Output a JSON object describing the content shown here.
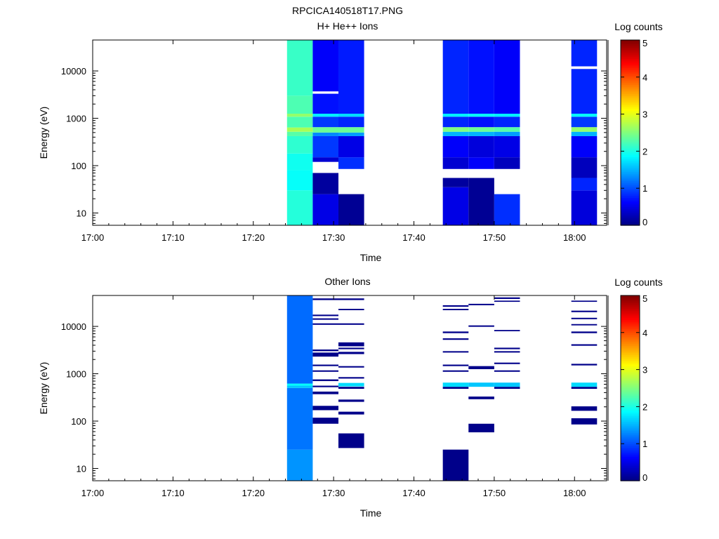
{
  "figure": {
    "title": "RPCICA140518T17.PNG"
  },
  "chart_data": [
    {
      "type": "heatmap",
      "title": "H+ He++ Ions",
      "xlabel": "Time",
      "ylabel": "Energy (eV)",
      "y_scale": "log",
      "ylim": [
        5.5,
        45000
      ],
      "x_tick_labels": [
        "17:00",
        "17:10",
        "17:20",
        "17:30",
        "17:40",
        "17:50",
        "18:00"
      ],
      "x_tick_minutes": [
        0,
        10,
        20,
        30,
        40,
        50,
        60
      ],
      "xlim_minutes": [
        0,
        64
      ],
      "y_tick_labels": [
        "10",
        "100",
        "1000",
        "10000"
      ],
      "y_tick_values": [
        10,
        100,
        1000,
        10000
      ],
      "colorbar": {
        "label": "Log counts",
        "ticks": [
          "0",
          "1",
          "2",
          "3",
          "4",
          "5"
        ],
        "range": [
          0,
          5
        ],
        "colormap": "jet"
      },
      "columns": [
        {
          "t0": 24.2,
          "t1": 27.4,
          "bins": [
            {
              "emin": 5.5,
              "emax": 30,
              "log_counts": 2.05
            },
            {
              "emin": 30,
              "emax": 80,
              "log_counts": 1.9
            },
            {
              "emin": 80,
              "emax": 180,
              "log_counts": 1.95
            },
            {
              "emin": 180,
              "emax": 420,
              "log_counts": 2.1
            },
            {
              "emin": 420,
              "emax": 520,
              "log_counts": 2.3
            },
            {
              "emin": 520,
              "emax": 640,
              "log_counts": 2.7
            },
            {
              "emin": 640,
              "emax": 1080,
              "log_counts": 2.25
            },
            {
              "emin": 1080,
              "emax": 1250,
              "log_counts": 2.6
            },
            {
              "emin": 1250,
              "emax": 3000,
              "log_counts": 2.25
            },
            {
              "emin": 3000,
              "emax": 45000,
              "log_counts": 2.15
            }
          ]
        },
        {
          "t0": 27.4,
          "t1": 30.6,
          "bins": [
            {
              "emin": 5.5,
              "emax": 25,
              "log_counts": 0.5
            },
            {
              "emin": 25,
              "emax": 70,
              "log_counts": 0.15
            },
            {
              "emin": 120,
              "emax": 150,
              "log_counts": 0.4
            },
            {
              "emin": 150,
              "emax": 420,
              "log_counts": 0.9
            },
            {
              "emin": 420,
              "emax": 500,
              "log_counts": 1.3
            },
            {
              "emin": 500,
              "emax": 650,
              "log_counts": 2.4
            },
            {
              "emin": 650,
              "emax": 1080,
              "log_counts": 0.9
            },
            {
              "emin": 1080,
              "emax": 1250,
              "log_counts": 1.8
            },
            {
              "emin": 1250,
              "emax": 3300,
              "log_counts": 0.7
            },
            {
              "emin": 3300,
              "emax": 3700,
              "log_counts": -1
            },
            {
              "emin": 3700,
              "emax": 45000,
              "log_counts": 0.6
            }
          ]
        },
        {
          "t0": 30.6,
          "t1": 33.8,
          "bins": [
            {
              "emin": 5.5,
              "emax": 25,
              "log_counts": 0.1
            },
            {
              "emin": 85,
              "emax": 150,
              "log_counts": 0.85
            },
            {
              "emin": 150,
              "emax": 420,
              "log_counts": 0.5
            },
            {
              "emin": 420,
              "emax": 500,
              "log_counts": 1.4
            },
            {
              "emin": 500,
              "emax": 650,
              "log_counts": 2.4
            },
            {
              "emin": 650,
              "emax": 1080,
              "log_counts": 0.8
            },
            {
              "emin": 1080,
              "emax": 1250,
              "log_counts": 1.7
            },
            {
              "emin": 1250,
              "emax": 45000,
              "log_counts": 0.75
            }
          ]
        },
        {
          "t0": 43.6,
          "t1": 46.8,
          "bins": [
            {
              "emin": 5.5,
              "emax": 35,
              "log_counts": 0.5
            },
            {
              "emin": 35,
              "emax": 55,
              "log_counts": 0.15
            },
            {
              "emin": 85,
              "emax": 150,
              "log_counts": 0.4
            },
            {
              "emin": 150,
              "emax": 420,
              "log_counts": 0.6
            },
            {
              "emin": 420,
              "emax": 520,
              "log_counts": 1.5
            },
            {
              "emin": 520,
              "emax": 650,
              "log_counts": 2.5
            },
            {
              "emin": 650,
              "emax": 1080,
              "log_counts": 0.8
            },
            {
              "emin": 1080,
              "emax": 1250,
              "log_counts": 1.8
            },
            {
              "emin": 1250,
              "emax": 45000,
              "log_counts": 0.8
            }
          ]
        },
        {
          "t0": 46.8,
          "t1": 50.0,
          "bins": [
            {
              "emin": 5.5,
              "emax": 55,
              "log_counts": 0.1
            },
            {
              "emin": 85,
              "emax": 150,
              "log_counts": 0.6
            },
            {
              "emin": 150,
              "emax": 420,
              "log_counts": 0.45
            },
            {
              "emin": 420,
              "emax": 520,
              "log_counts": 1.5
            },
            {
              "emin": 520,
              "emax": 650,
              "log_counts": 2.4
            },
            {
              "emin": 650,
              "emax": 1080,
              "log_counts": 0.7
            },
            {
              "emin": 1080,
              "emax": 1250,
              "log_counts": 1.9
            },
            {
              "emin": 1250,
              "emax": 45000,
              "log_counts": 0.7
            }
          ]
        },
        {
          "t0": 50.0,
          "t1": 53.2,
          "bins": [
            {
              "emin": 5.5,
              "emax": 25,
              "log_counts": 0.85
            },
            {
              "emin": 85,
              "emax": 150,
              "log_counts": 0.3
            },
            {
              "emin": 150,
              "emax": 420,
              "log_counts": 0.5
            },
            {
              "emin": 420,
              "emax": 520,
              "log_counts": 1.4
            },
            {
              "emin": 520,
              "emax": 650,
              "log_counts": 2.3
            },
            {
              "emin": 650,
              "emax": 1080,
              "log_counts": 0.8
            },
            {
              "emin": 1080,
              "emax": 1250,
              "log_counts": 1.8
            },
            {
              "emin": 1250,
              "emax": 45000,
              "log_counts": 0.6
            }
          ]
        },
        {
          "t0": 59.6,
          "t1": 62.8,
          "bins": [
            {
              "emin": 5.5,
              "emax": 30,
              "log_counts": 0.45
            },
            {
              "emin": 30,
              "emax": 55,
              "log_counts": 0.8
            },
            {
              "emin": 55,
              "emax": 150,
              "log_counts": 0.3
            },
            {
              "emin": 150,
              "emax": 420,
              "log_counts": 0.6
            },
            {
              "emin": 420,
              "emax": 520,
              "log_counts": 1.5
            },
            {
              "emin": 520,
              "emax": 650,
              "log_counts": 2.6
            },
            {
              "emin": 650,
              "emax": 1080,
              "log_counts": 0.9
            },
            {
              "emin": 1080,
              "emax": 1250,
              "log_counts": 1.9
            },
            {
              "emin": 1250,
              "emax": 11000,
              "log_counts": 0.8
            },
            {
              "emin": 11000,
              "emax": 12500,
              "log_counts": -1
            },
            {
              "emin": 12500,
              "emax": 45000,
              "log_counts": 0.8
            }
          ]
        }
      ]
    },
    {
      "type": "heatmap",
      "title": "Other Ions",
      "xlabel": "Time",
      "ylabel": "Energy (eV)",
      "y_scale": "log",
      "ylim": [
        5.5,
        45000
      ],
      "x_tick_labels": [
        "17:00",
        "17:10",
        "17:20",
        "17:30",
        "17:40",
        "17:50",
        "18:00"
      ],
      "x_tick_minutes": [
        0,
        10,
        20,
        30,
        40,
        50,
        60
      ],
      "xlim_minutes": [
        0,
        64
      ],
      "y_tick_labels": [
        "10",
        "100",
        "1000",
        "10000"
      ],
      "y_tick_values": [
        10,
        100,
        1000,
        10000
      ],
      "colorbar": {
        "label": "Log counts",
        "ticks": [
          "0",
          "1",
          "2",
          "3",
          "4",
          "5"
        ],
        "range": [
          0,
          5
        ],
        "colormap": "jet"
      },
      "columns": [
        {
          "t0": 24.2,
          "t1": 27.4,
          "bins": [
            {
              "emin": 5.5,
              "emax": 25,
              "log_counts": 1.35
            },
            {
              "emin": 25,
              "emax": 500,
              "log_counts": 1.2
            },
            {
              "emin": 500,
              "emax": 560,
              "log_counts": 1.6
            },
            {
              "emin": 560,
              "emax": 620,
              "log_counts": 1.9
            },
            {
              "emin": 620,
              "emax": 45000,
              "log_counts": 1.15
            }
          ]
        },
        {
          "t0": 27.4,
          "t1": 30.6,
          "bins": [
            {
              "emin": 88,
              "emax": 118,
              "log_counts": 0.05
            },
            {
              "emin": 170,
              "emax": 210,
              "log_counts": 0.05
            },
            {
              "emin": 370,
              "emax": 420,
              "log_counts": 0.05
            },
            {
              "emin": 520,
              "emax": 560,
              "log_counts": 0.05
            },
            {
              "emin": 700,
              "emax": 760,
              "log_counts": 0.05
            },
            {
              "emin": 1100,
              "emax": 1180,
              "log_counts": 0.05
            },
            {
              "emin": 1450,
              "emax": 1560,
              "log_counts": 0.05
            },
            {
              "emin": 2300,
              "emax": 2800,
              "log_counts": 0.05
            },
            {
              "emin": 3000,
              "emax": 3250,
              "log_counts": 0.05
            },
            {
              "emin": 10800,
              "emax": 11600,
              "log_counts": 0.05
            },
            {
              "emin": 13800,
              "emax": 14800,
              "log_counts": 0.05
            },
            {
              "emin": 16500,
              "emax": 17700,
              "log_counts": 0.05
            },
            {
              "emin": 36000,
              "emax": 39000,
              "log_counts": 0.05
            }
          ]
        },
        {
          "t0": 30.6,
          "t1": 33.8,
          "bins": [
            {
              "emin": 27,
              "emax": 55,
              "log_counts": 0.05
            },
            {
              "emin": 138,
              "emax": 158,
              "log_counts": 0.05
            },
            {
              "emin": 255,
              "emax": 285,
              "log_counts": 0.05
            },
            {
              "emin": 480,
              "emax": 530,
              "log_counts": 0.05
            },
            {
              "emin": 540,
              "emax": 640,
              "log_counts": 1.7
            },
            {
              "emin": 790,
              "emax": 850,
              "log_counts": 0.05
            },
            {
              "emin": 1350,
              "emax": 1450,
              "log_counts": 0.05
            },
            {
              "emin": 2600,
              "emax": 2900,
              "log_counts": 0.05
            },
            {
              "emin": 3300,
              "emax": 3550,
              "log_counts": 0.05
            },
            {
              "emin": 3800,
              "emax": 4600,
              "log_counts": 0.05
            },
            {
              "emin": 10800,
              "emax": 11600,
              "log_counts": 0.05
            },
            {
              "emin": 22000,
              "emax": 23500,
              "log_counts": 0.05
            },
            {
              "emin": 36000,
              "emax": 39000,
              "log_counts": 0.05
            }
          ]
        },
        {
          "t0": 43.6,
          "t1": 46.8,
          "bins": [
            {
              "emin": 5.5,
              "emax": 25,
              "log_counts": 0.05
            },
            {
              "emin": 480,
              "emax": 530,
              "log_counts": 0.05
            },
            {
              "emin": 530,
              "emax": 650,
              "log_counts": 1.7
            },
            {
              "emin": 1100,
              "emax": 1180,
              "log_counts": 0.05
            },
            {
              "emin": 1450,
              "emax": 1560,
              "log_counts": 0.05
            },
            {
              "emin": 2800,
              "emax": 3000,
              "log_counts": 0.05
            },
            {
              "emin": 5200,
              "emax": 5600,
              "log_counts": 0.05
            },
            {
              "emin": 7200,
              "emax": 7800,
              "log_counts": 0.05
            },
            {
              "emin": 22000,
              "emax": 23500,
              "log_counts": 0.05
            },
            {
              "emin": 26000,
              "emax": 28000,
              "log_counts": 0.05
            }
          ]
        },
        {
          "t0": 46.8,
          "t1": 50.0,
          "bins": [
            {
              "emin": 58,
              "emax": 88,
              "log_counts": 0.05
            },
            {
              "emin": 290,
              "emax": 330,
              "log_counts": 0.05
            },
            {
              "emin": 530,
              "emax": 650,
              "log_counts": 1.6
            },
            {
              "emin": 1250,
              "emax": 1450,
              "log_counts": 0.05
            },
            {
              "emin": 9800,
              "emax": 10500,
              "log_counts": 0.05
            },
            {
              "emin": 28000,
              "emax": 30000,
              "log_counts": 0.05
            }
          ]
        },
        {
          "t0": 50.0,
          "t1": 53.2,
          "bins": [
            {
              "emin": 480,
              "emax": 530,
              "log_counts": 0.05
            },
            {
              "emin": 530,
              "emax": 650,
              "log_counts": 1.6
            },
            {
              "emin": 1100,
              "emax": 1180,
              "log_counts": 0.05
            },
            {
              "emin": 1600,
              "emax": 1720,
              "log_counts": 0.05
            },
            {
              "emin": 2800,
              "emax": 3000,
              "log_counts": 0.05
            },
            {
              "emin": 3300,
              "emax": 3550,
              "log_counts": 0.05
            },
            {
              "emin": 7900,
              "emax": 8400,
              "log_counts": 0.05
            },
            {
              "emin": 33000,
              "emax": 35000,
              "log_counts": 0.05
            },
            {
              "emin": 38000,
              "emax": 41000,
              "log_counts": 0.05
            }
          ]
        },
        {
          "t0": 59.6,
          "t1": 62.8,
          "bins": [
            {
              "emin": 85,
              "emax": 115,
              "log_counts": 0.05
            },
            {
              "emin": 165,
              "emax": 205,
              "log_counts": 0.05
            },
            {
              "emin": 480,
              "emax": 530,
              "log_counts": 0.05
            },
            {
              "emin": 530,
              "emax": 650,
              "log_counts": 1.7
            },
            {
              "emin": 1500,
              "emax": 1620,
              "log_counts": 0.05
            },
            {
              "emin": 3900,
              "emax": 4200,
              "log_counts": 0.05
            },
            {
              "emin": 7200,
              "emax": 7800,
              "log_counts": 0.05
            },
            {
              "emin": 10500,
              "emax": 11200,
              "log_counts": 0.05
            },
            {
              "emin": 14200,
              "emax": 15200,
              "log_counts": 0.05
            },
            {
              "emin": 20000,
              "emax": 21500,
              "log_counts": 0.05
            },
            {
              "emin": 33000,
              "emax": 35000,
              "log_counts": 0.05
            }
          ]
        }
      ]
    }
  ]
}
